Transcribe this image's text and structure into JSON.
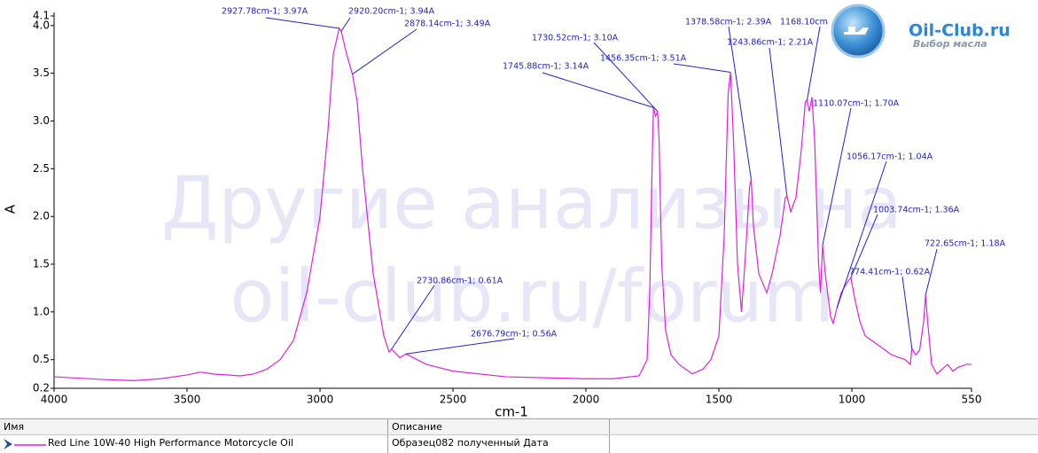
{
  "chart_data": {
    "type": "line",
    "x_label": "cm-1",
    "y_label": "A",
    "xlim": [
      4000,
      550
    ],
    "ylim": [
      0.2,
      4.1
    ],
    "xticks": [
      4000,
      3500,
      3000,
      2500,
      2000,
      1500,
      1000,
      550
    ],
    "yticks": [
      0.2,
      0.5,
      {
        "value": 1,
        "label": "1.0"
      },
      1.5,
      {
        "value": 2,
        "label": "2.0"
      },
      2.5,
      {
        "value": 3,
        "label": "3.0"
      },
      3.5,
      {
        "value": 4,
        "label": "4.0"
      },
      4.1
    ],
    "x": [
      4000,
      3800,
      3700,
      3600,
      3500,
      3450,
      3400,
      3300,
      3250,
      3200,
      3150,
      3100,
      3050,
      3000,
      2970,
      2950,
      2927.78,
      2920.2,
      2900,
      2878.14,
      2860,
      2840,
      2800,
      2760,
      2740,
      2730.86,
      2700,
      2676.79,
      2600,
      2500,
      2300,
      2000,
      1900,
      1800,
      1770,
      1760,
      1750,
      1745.88,
      1738,
      1730.52,
      1725,
      1715,
      1700,
      1680,
      1650,
      1600,
      1560,
      1530,
      1500,
      1480,
      1465,
      1456.35,
      1445,
      1430,
      1415,
      1400,
      1385,
      1378.58,
      1370,
      1350,
      1320,
      1300,
      1270,
      1250,
      1243.86,
      1230,
      1210,
      1190,
      1175,
      1168.1,
      1160,
      1150,
      1140,
      1125,
      1118,
      1110.07,
      1100,
      1080,
      1070,
      1056.17,
      1040,
      1020,
      1003.74,
      990,
      970,
      950,
      900,
      850,
      800,
      780,
      774.41,
      760,
      745,
      730,
      722.65,
      715,
      700,
      680,
      660,
      640,
      620,
      600,
      570,
      550
    ],
    "series": [
      {
        "name": "Red Line 10W-40 High Performance Motorcycle Oil",
        "color": "#dd22dd",
        "values": [
          0.32,
          0.29,
          0.28,
          0.3,
          0.34,
          0.37,
          0.35,
          0.33,
          0.35,
          0.4,
          0.5,
          0.7,
          1.2,
          2.0,
          2.9,
          3.7,
          3.97,
          3.94,
          3.7,
          3.49,
          3.2,
          2.5,
          1.4,
          0.75,
          0.58,
          0.61,
          0.52,
          0.56,
          0.45,
          0.38,
          0.32,
          0.3,
          0.3,
          0.33,
          0.5,
          1.2,
          2.7,
          3.14,
          3.05,
          3.1,
          2.8,
          1.5,
          0.8,
          0.55,
          0.45,
          0.35,
          0.4,
          0.5,
          0.75,
          1.8,
          3.3,
          3.51,
          2.8,
          1.5,
          1.0,
          1.6,
          2.3,
          2.39,
          1.9,
          1.4,
          1.2,
          1.4,
          1.8,
          2.2,
          2.21,
          2.05,
          2.2,
          2.7,
          3.2,
          3.22,
          3.1,
          3.25,
          2.8,
          1.5,
          1.2,
          1.7,
          1.4,
          0.95,
          0.88,
          1.04,
          1.2,
          1.3,
          1.36,
          1.15,
          0.9,
          0.75,
          0.65,
          0.55,
          0.5,
          0.45,
          0.62,
          0.55,
          0.6,
          0.9,
          1.18,
          0.9,
          0.45,
          0.35,
          0.4,
          0.45,
          0.38,
          0.42,
          0.45,
          0.45
        ]
      }
    ],
    "annotations": [
      {
        "text": "2927.78cm-1; 3.97A",
        "x": 2927.78,
        "y": 3.97
      },
      {
        "text": "2920.20cm-1; 3.94A",
        "x": 2920.2,
        "y": 3.94
      },
      {
        "text": "2878.14cm-1; 3.49A",
        "x": 2878.14,
        "y": 3.49
      },
      {
        "text": "1730.52cm-1; 3.10A",
        "x": 1730.52,
        "y": 3.1
      },
      {
        "text": "1745.88cm-1; 3.14A",
        "x": 1745.88,
        "y": 3.14
      },
      {
        "text": "1456.35cm-1; 3.51A",
        "x": 1456.35,
        "y": 3.51
      },
      {
        "text": "1378.58cm-1; 2.39A",
        "x": 1378.58,
        "y": 2.39
      },
      {
        "text": "1243.86cm-1; 2.21A",
        "x": 1243.86,
        "y": 2.21
      },
      {
        "text": "1168.10cm",
        "x": 1168.1,
        "y": 3.22
      },
      {
        "text": "1110.07cm-1; 1.70A",
        "x": 1110.07,
        "y": 1.7
      },
      {
        "text": "1056.17cm-1; 1.04A",
        "x": 1056.17,
        "y": 1.04
      },
      {
        "text": "1003.74cm-1; 1.36A",
        "x": 1003.74,
        "y": 1.36
      },
      {
        "text": "774.41cm-1; 0.62A",
        "x": 774.41,
        "y": 0.62
      },
      {
        "text": "722.65cm-1; 1.18A",
        "x": 722.65,
        "y": 1.18
      },
      {
        "text": "2730.86cm-1; 0.61A",
        "x": 2730.86,
        "y": 0.61
      },
      {
        "text": "2676.79cm-1; 0.56A",
        "x": 2676.79,
        "y": 0.56
      }
    ]
  },
  "watermark": [
    "Другие анализы на",
    "oil-club.ru/forum"
  ],
  "logo": {
    "title": "Oil-Club.ru",
    "subtitle": "Выбор масла"
  },
  "table": {
    "headers": [
      "Имя",
      "Описание"
    ],
    "description": "Образец082 полученный  Дата"
  }
}
